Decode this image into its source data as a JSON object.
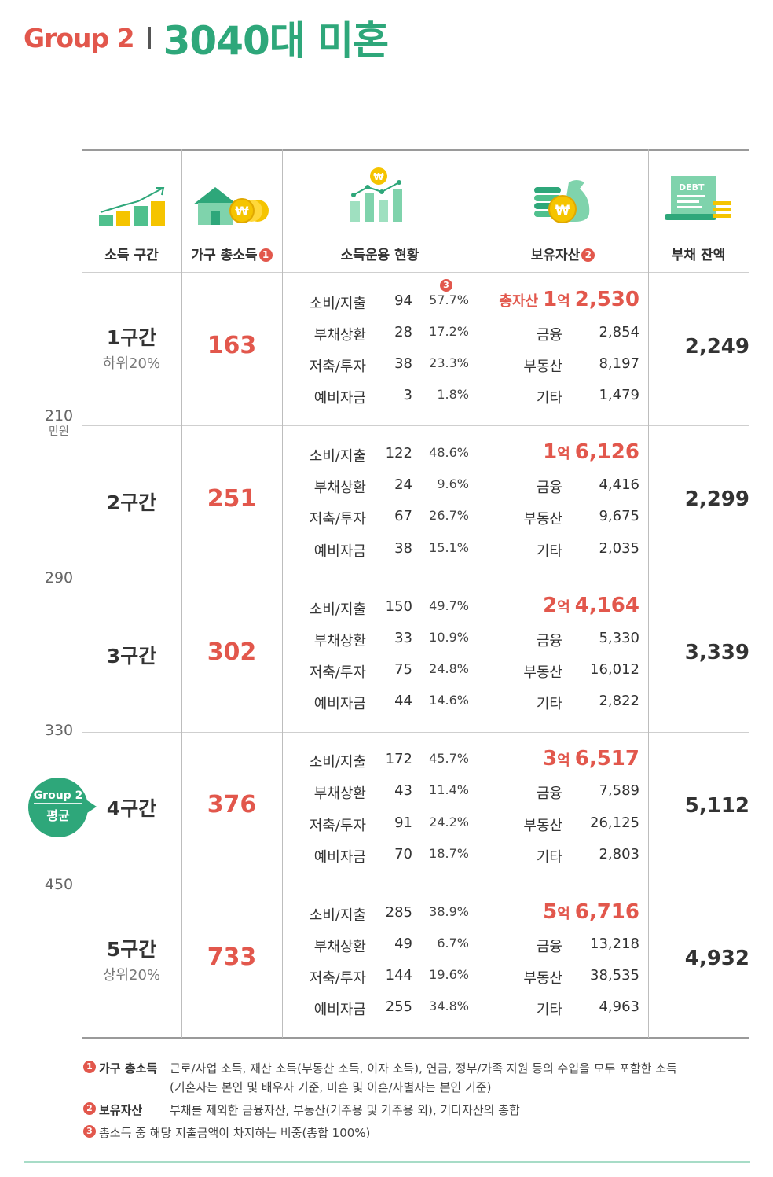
{
  "header": {
    "group": "Group 2",
    "title": "3040대 미혼"
  },
  "columns": {
    "income_bracket": "소득 구간",
    "household_income": "가구 총소득",
    "household_income_mark": "1",
    "income_use": "소득운용 현황",
    "assets": "보유자산",
    "assets_mark": "2",
    "debt": "부채 잔액",
    "debt_icon_text": "DEBT",
    "won_symbol": "₩"
  },
  "boundaries": [
    {
      "value": "210",
      "unit": "만원"
    },
    {
      "value": "290"
    },
    {
      "value": "330"
    },
    {
      "value": "450"
    }
  ],
  "share_mark": "3",
  "badge": {
    "line1": "Group 2",
    "line2": "평균"
  },
  "labels": {
    "spend": "소비/지출",
    "repay": "부채상환",
    "save": "저축/투자",
    "reserve": "예비자금",
    "finance": "금융",
    "realestate": "부동산",
    "other": "기타",
    "total_assets": "총자산",
    "eok": "억"
  },
  "rows": [
    {
      "name": "1구간",
      "sub": "하위20%",
      "income": "163",
      "use": [
        [
          "94",
          "57.7%"
        ],
        [
          "28",
          "17.2%"
        ],
        [
          "38",
          "23.3%"
        ],
        [
          "3",
          "1.8%"
        ]
      ],
      "assets": {
        "eok_num": "1",
        "rest": "2,530",
        "finance": "2,854",
        "realestate": "8,197",
        "other": "1,479"
      },
      "debt": "2,249"
    },
    {
      "name": "2구간",
      "sub": "",
      "income": "251",
      "use": [
        [
          "122",
          "48.6%"
        ],
        [
          "24",
          "9.6%"
        ],
        [
          "67",
          "26.7%"
        ],
        [
          "38",
          "15.1%"
        ]
      ],
      "assets": {
        "eok_num": "1",
        "rest": "6,126",
        "finance": "4,416",
        "realestate": "9,675",
        "other": "2,035"
      },
      "debt": "2,299"
    },
    {
      "name": "3구간",
      "sub": "",
      "income": "302",
      "use": [
        [
          "150",
          "49.7%"
        ],
        [
          "33",
          "10.9%"
        ],
        [
          "75",
          "24.8%"
        ],
        [
          "44",
          "14.6%"
        ]
      ],
      "assets": {
        "eok_num": "2",
        "rest": "4,164",
        "finance": "5,330",
        "realestate": "16,012",
        "other": "2,822"
      },
      "debt": "3,339"
    },
    {
      "name": "4구간",
      "sub": "",
      "income": "376",
      "use": [
        [
          "172",
          "45.7%"
        ],
        [
          "43",
          "11.4%"
        ],
        [
          "91",
          "24.2%"
        ],
        [
          "70",
          "18.7%"
        ]
      ],
      "assets": {
        "eok_num": "3",
        "rest": "6,517",
        "finance": "7,589",
        "realestate": "26,125",
        "other": "2,803"
      },
      "debt": "5,112"
    },
    {
      "name": "5구간",
      "sub": "상위20%",
      "income": "733",
      "use": [
        [
          "285",
          "38.9%"
        ],
        [
          "49",
          "6.7%"
        ],
        [
          "144",
          "19.6%"
        ],
        [
          "255",
          "34.8%"
        ]
      ],
      "assets": {
        "eok_num": "5",
        "rest": "6,716",
        "finance": "13,218",
        "realestate": "38,535",
        "other": "4,963"
      },
      "debt": "4,932"
    }
  ],
  "notes": [
    {
      "num": "1",
      "term": "가구 총소득",
      "line1": "근로/사업 소득, 재산 소득(부동산 소득, 이자 소득), 연금, 정부/가족 지원 등의 수입을 모두 포함한 소득",
      "line2": "(기혼자는 본인 및 배우자 기준, 미혼 및 이혼/사별자는 본인 기준)"
    },
    {
      "num": "2",
      "term": "보유자산",
      "line1": "부채를 제외한 금융자산, 부동산(거주용 및 거주용 외), 기타자산의 총합"
    },
    {
      "num": "3",
      "line1": "총소득 중 해당 지출금액이 차지하는 비중(총합 100%)"
    }
  ],
  "colors": {
    "accent_red": "#e2574c",
    "accent_green": "#2ea77a",
    "icon_yellow": "#f5c400"
  }
}
